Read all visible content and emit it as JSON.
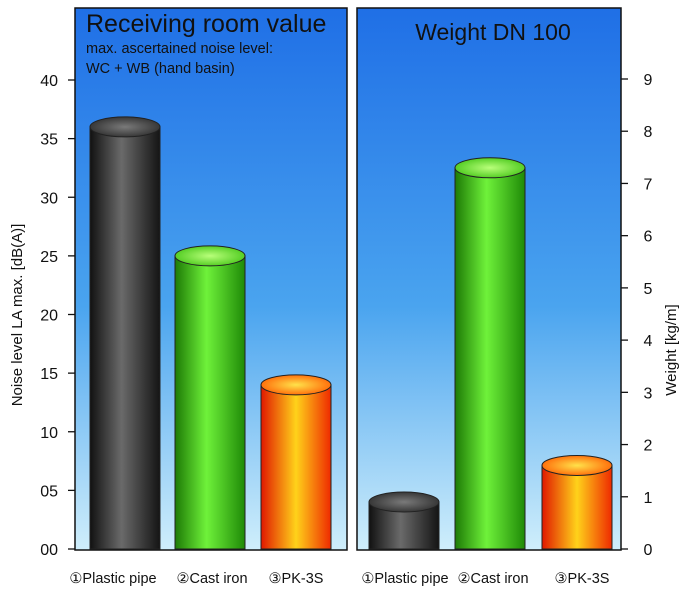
{
  "chart_data": [
    {
      "type": "bar",
      "title": "Receiving room value",
      "subtitle_lines": [
        "max. ascertained noise level:",
        "WC + WB (hand basin)"
      ],
      "ylabel": "Noise level LA max. [dB(A)]",
      "ylim": [
        0,
        40
      ],
      "yticks": [
        "00",
        "05",
        "10",
        "15",
        "20",
        "25",
        "30",
        "35",
        "40"
      ],
      "categories": [
        "①Plastic pipe",
        "②Cast iron",
        "③PK-3S"
      ],
      "values": [
        36,
        25,
        14
      ],
      "bar_colors": [
        "black",
        "green",
        "red-orange"
      ]
    },
    {
      "type": "bar",
      "title": "Weight DN 100",
      "ylabel": "Weight [kg/m]",
      "ylim": [
        0,
        9
      ],
      "yticks": [
        "0",
        "1",
        "2",
        "3",
        "4",
        "5",
        "6",
        "7",
        "8",
        "9"
      ],
      "categories": [
        "①Plastic pipe",
        "②Cast iron",
        "③PK-3S"
      ],
      "values": [
        0.9,
        7.3,
        1.6
      ],
      "bar_colors": [
        "black",
        "green",
        "red-orange"
      ]
    }
  ],
  "colors": {
    "panel_top": "#1f6fe6",
    "panel_bottom": "#cfeefb",
    "black_bar": "#3a3a3a",
    "green_bar": "#3fd11a",
    "orange_bar": "#ff4a00"
  }
}
